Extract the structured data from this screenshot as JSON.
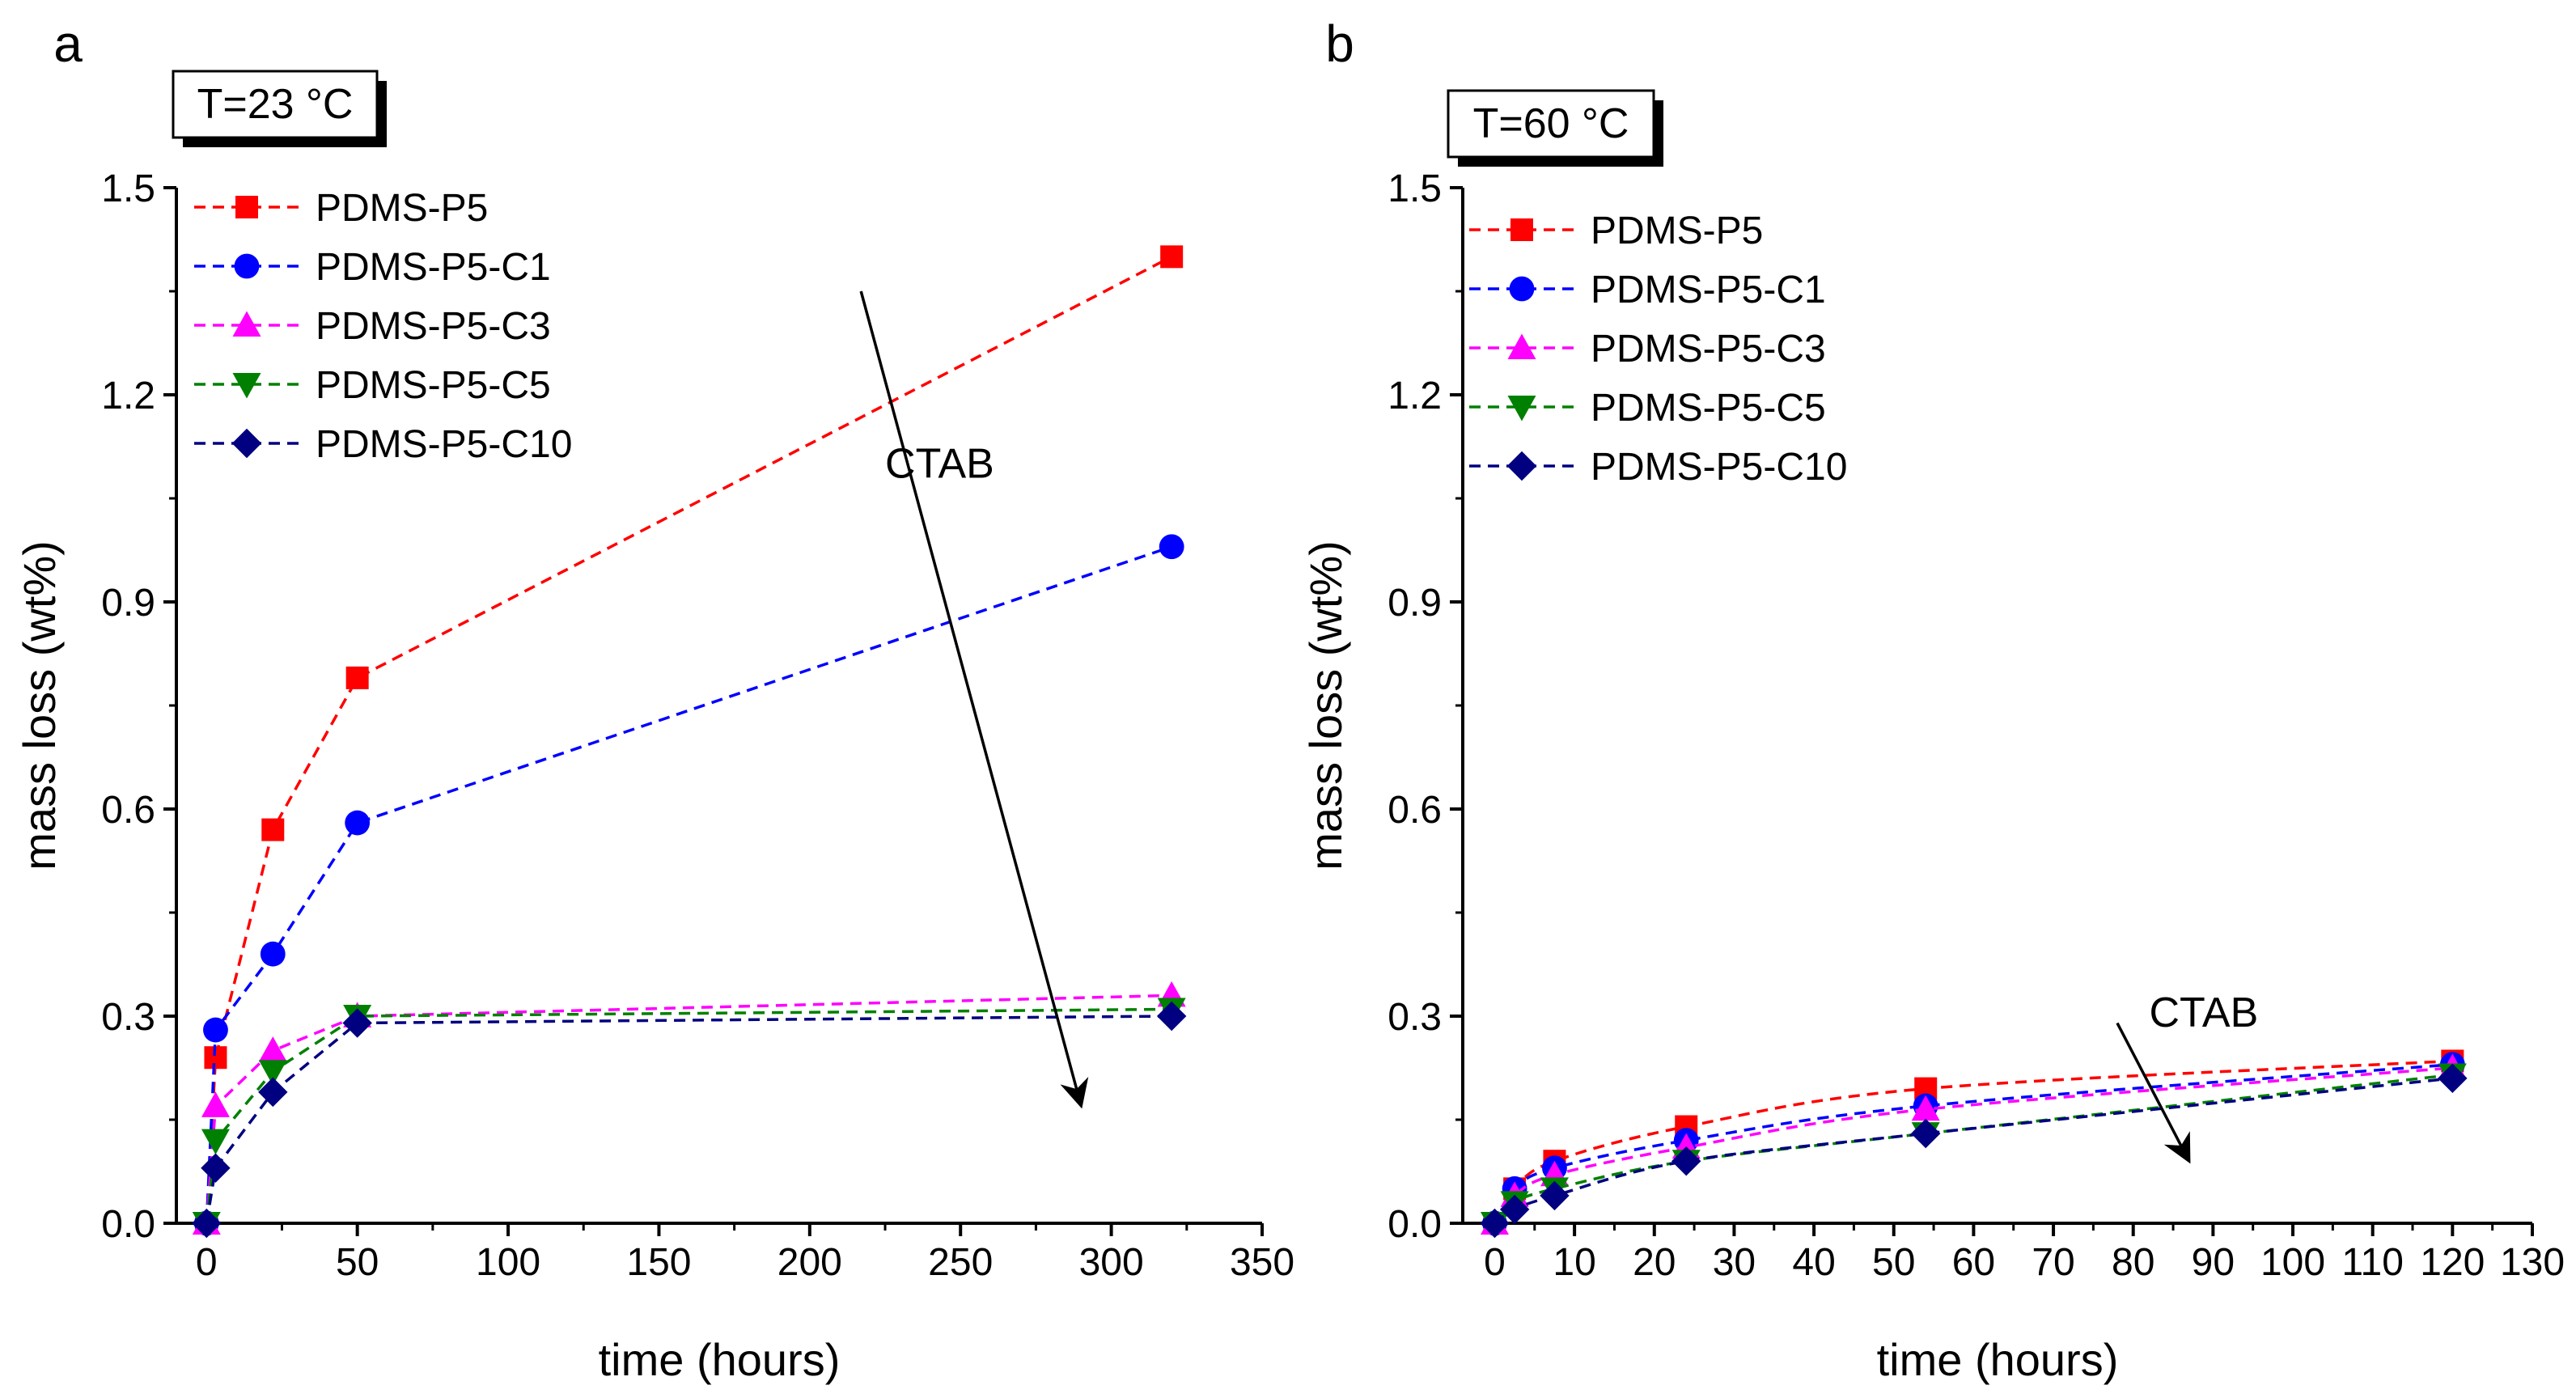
{
  "chart_data": [
    {
      "type": "line",
      "panel_label": "a",
      "temperature_label": "T=23 °C",
      "xlabel": "time (hours)",
      "ylabel": "mass loss (wt%)",
      "xlim": [
        -10,
        350
      ],
      "ylim": [
        0,
        1.5
      ],
      "xticks": [
        0,
        50,
        100,
        150,
        200,
        250,
        300,
        350
      ],
      "yticks": [
        0.0,
        0.3,
        0.6,
        0.9,
        1.2,
        1.5
      ],
      "ytick_labels": [
        "0.0",
        "0.3",
        "0.6",
        "0.9",
        "1.2",
        "1.5"
      ],
      "legend_position": "top-left",
      "annotation": {
        "label": "CTAB",
        "arrow_from": [
          217,
          1.35
        ],
        "arrow_to": [
          290,
          0.17
        ]
      },
      "series": [
        {
          "name": "PDMS-P5",
          "color": "#ff0000",
          "marker": "square",
          "x": [
            0,
            3,
            22,
            50,
            320
          ],
          "y": [
            0.0,
            0.24,
            0.57,
            0.79,
            1.4
          ]
        },
        {
          "name": "PDMS-P5-C1",
          "color": "#0000ff",
          "marker": "circle",
          "x": [
            0,
            3,
            22,
            50,
            320
          ],
          "y": [
            0.0,
            0.28,
            0.39,
            0.58,
            0.98
          ]
        },
        {
          "name": "PDMS-P5-C3",
          "color": "#ff00ff",
          "marker": "triangle-up",
          "x": [
            0,
            3,
            22,
            50,
            320
          ],
          "y": [
            0.0,
            0.17,
            0.25,
            0.3,
            0.33
          ]
        },
        {
          "name": "PDMS-P5-C5",
          "color": "#008000",
          "marker": "triangle-down",
          "x": [
            0,
            3,
            22,
            50,
            320
          ],
          "y": [
            0.0,
            0.12,
            0.22,
            0.3,
            0.31
          ]
        },
        {
          "name": "PDMS-P5-C10",
          "color": "#000080",
          "marker": "diamond",
          "x": [
            0,
            3,
            22,
            50,
            320
          ],
          "y": [
            0.0,
            0.08,
            0.19,
            0.29,
            0.3
          ]
        }
      ]
    },
    {
      "type": "line",
      "panel_label": "b",
      "temperature_label": "T=60 °C",
      "xlabel": "time (hours)",
      "ylabel": "mass loss (wt%)",
      "xlim": [
        -4,
        130
      ],
      "ylim": [
        0,
        1.5
      ],
      "xticks": [
        0,
        10,
        20,
        30,
        40,
        50,
        60,
        70,
        80,
        90,
        100,
        110,
        120,
        130
      ],
      "yticks": [
        0.0,
        0.3,
        0.6,
        0.9,
        1.2,
        1.5
      ],
      "ytick_labels": [
        "0.0",
        "0.3",
        "0.6",
        "0.9",
        "1.2",
        "1.5"
      ],
      "legend_position": "top-left",
      "annotation": {
        "label": "CTAB",
        "arrow_from": [
          78,
          0.29
        ],
        "arrow_to": [
          87,
          0.09
        ]
      },
      "series": [
        {
          "name": "PDMS-P5",
          "color": "#ff0000",
          "marker": "square",
          "x": [
            0,
            2.5,
            7.5,
            24,
            54,
            120
          ],
          "y": [
            0.0,
            0.05,
            0.09,
            0.14,
            0.195,
            0.235
          ]
        },
        {
          "name": "PDMS-P5-C1",
          "color": "#0000ff",
          "marker": "circle",
          "x": [
            0,
            2.5,
            7.5,
            24,
            54,
            120
          ],
          "y": [
            0.0,
            0.05,
            0.08,
            0.12,
            0.17,
            0.23
          ]
        },
        {
          "name": "PDMS-P5-C3",
          "color": "#ff00ff",
          "marker": "triangle-up",
          "x": [
            0,
            2.5,
            7.5,
            24,
            54,
            120
          ],
          "y": [
            0.0,
            0.04,
            0.07,
            0.11,
            0.165,
            0.225
          ]
        },
        {
          "name": "PDMS-P5-C5",
          "color": "#008000",
          "marker": "triangle-down",
          "x": [
            0,
            2.5,
            7.5,
            24,
            54,
            120
          ],
          "y": [
            0.0,
            0.03,
            0.05,
            0.09,
            0.13,
            0.215
          ]
        },
        {
          "name": "PDMS-P5-C10",
          "color": "#000080",
          "marker": "diamond",
          "x": [
            0,
            2.5,
            7.5,
            24,
            54,
            120
          ],
          "y": [
            0.0,
            0.02,
            0.04,
            0.09,
            0.13,
            0.21
          ]
        }
      ]
    }
  ]
}
